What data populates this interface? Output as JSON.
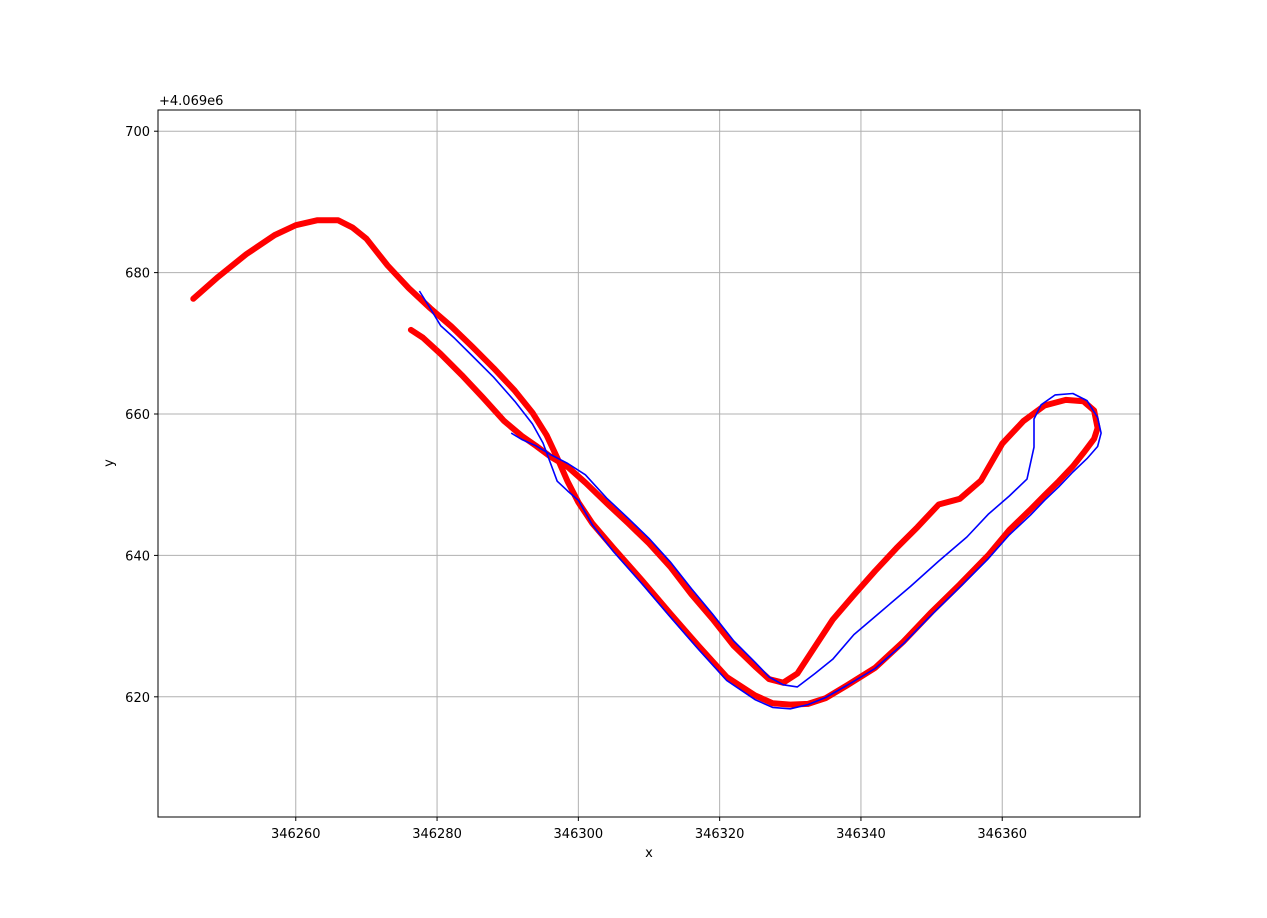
{
  "chart_data": {
    "type": "line",
    "title": "",
    "xlabel": "x",
    "ylabel": "y",
    "y_offset_label": "+4.069e6",
    "xlim": [
      346240.5,
      346379.5
    ],
    "ylim": [
      603.0,
      703.0
    ],
    "xticks": [
      346260,
      346280,
      346300,
      346320,
      346340,
      346360
    ],
    "xtick_labels": [
      "346260",
      "346280",
      "346300",
      "346320",
      "346340",
      "346360"
    ],
    "yticks": [
      620,
      640,
      660,
      680,
      700
    ],
    "ytick_labels": [
      "620",
      "640",
      "660",
      "680",
      "700"
    ],
    "grid": true,
    "legend": null,
    "series": [
      {
        "color": "#ff0000",
        "style": "thick-dots",
        "x": [
          346245.5,
          346249,
          346253,
          346257,
          346260,
          346263,
          346266,
          346268,
          346270,
          346273,
          346276,
          346279,
          346282,
          346285,
          346288,
          346291,
          346293.5,
          346295.5,
          346297,
          346298.5,
          346300,
          346302,
          346305,
          346309,
          346313,
          346317,
          346321,
          346325,
          346327.5,
          346330,
          346332.5,
          346335,
          346338,
          346342,
          346346,
          346350,
          346354,
          346358,
          346361,
          346364,
          346366,
          346368,
          346370,
          346371.5,
          346373,
          346373.5,
          346373,
          346371.5,
          346369,
          346366,
          346363,
          346360,
          346357,
          346354,
          346351,
          346348,
          346345,
          346342,
          346339,
          346336,
          346333.5,
          346331,
          346329,
          346327,
          346325,
          346322,
          346319,
          346316,
          346313,
          346310,
          346307,
          346304,
          346301,
          346298.5,
          346296,
          346294,
          346292,
          346289.5,
          346286.5,
          346283.5,
          346280.5,
          346278,
          346276.3
        ],
        "y": [
          676.3,
          679.4,
          682.6,
          685.3,
          686.7,
          687.4,
          687.4,
          686.4,
          684.8,
          681.0,
          677.8,
          675.0,
          672.4,
          669.5,
          666.5,
          663.3,
          660.2,
          657.0,
          653.8,
          650.4,
          647.5,
          644.5,
          641.0,
          636.5,
          631.8,
          627.2,
          622.8,
          620.2,
          619.1,
          618.9,
          619.0,
          619.8,
          621.6,
          624.1,
          627.8,
          632.0,
          635.9,
          640.0,
          643.6,
          646.5,
          648.5,
          650.5,
          652.6,
          654.5,
          656.5,
          658.0,
          660.5,
          661.8,
          662.0,
          661.2,
          659.0,
          655.8,
          650.6,
          648.0,
          647.2,
          644.0,
          641.0,
          637.8,
          634.4,
          630.9,
          627.1,
          623.3,
          622.0,
          622.5,
          624.3,
          627.2,
          631.0,
          634.5,
          638.4,
          641.7,
          644.6,
          647.4,
          650.3,
          652.5,
          654.0,
          655.5,
          656.9,
          659.0,
          662.3,
          665.5,
          668.5,
          670.8,
          671.9
        ]
      },
      {
        "color": "#0000ff",
        "style": "thin-line",
        "x": [
          346277.5,
          346279,
          346280.5,
          346282.5,
          346285,
          346288,
          346291,
          346293.5,
          346295,
          346296,
          346297,
          346298.5,
          346300,
          346302,
          346305,
          346309,
          346313,
          346317,
          346321,
          346325,
          346327.5,
          346330,
          346332.5,
          346335,
          346338,
          346342,
          346346,
          346350,
          346354,
          346358,
          346361,
          346364,
          346366,
          346368,
          346370,
          346372,
          346373.5,
          346374,
          346373.5,
          346372,
          346370,
          346367.5,
          346365.5,
          346364.5,
          346364.5,
          346363.5,
          346361,
          346358,
          346355,
          346351,
          346347,
          346343,
          346339,
          346336,
          346333.5,
          346331,
          346329,
          346327,
          346325,
          346322,
          346319,
          346316,
          346313,
          346310,
          346307,
          346304,
          346301,
          346298.5,
          346296,
          346294,
          346292,
          346290.5
        ],
        "y": [
          677.4,
          675.0,
          672.5,
          670.7,
          668.2,
          665.2,
          661.8,
          658.6,
          655.9,
          653.2,
          650.5,
          649.1,
          647.8,
          644.3,
          640.5,
          636.0,
          631.3,
          626.7,
          622.3,
          619.6,
          618.5,
          618.3,
          618.9,
          619.9,
          621.6,
          624.0,
          627.5,
          631.6,
          635.5,
          639.5,
          642.9,
          645.7,
          647.8,
          649.7,
          651.8,
          653.7,
          655.4,
          657.3,
          659.5,
          661.9,
          662.9,
          662.7,
          661.3,
          659.3,
          655.3,
          650.8,
          648.4,
          645.8,
          642.6,
          639.2,
          635.6,
          632.2,
          628.8,
          625.3,
          623.3,
          621.4,
          621.7,
          622.8,
          624.9,
          627.9,
          631.7,
          635.3,
          639.1,
          642.4,
          645.3,
          648.1,
          651.4,
          653.0,
          654.3,
          655.5,
          656.4,
          657.3
        ]
      }
    ]
  }
}
